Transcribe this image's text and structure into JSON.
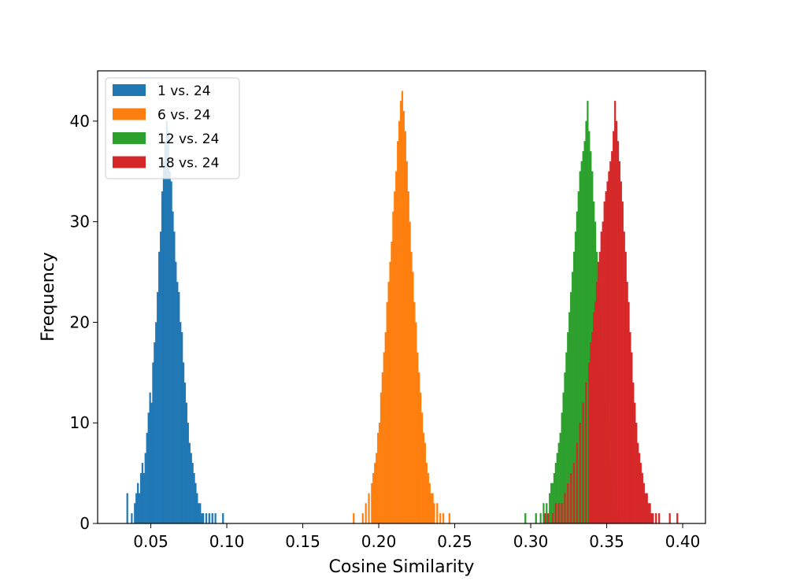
{
  "chart_data": {
    "type": "histogram",
    "title": "",
    "xlabel": "Cosine Similarity",
    "ylabel": "Frequency",
    "xlim": [
      0.015,
      0.415
    ],
    "ylim": [
      0,
      45
    ],
    "xticks": [
      "0.05",
      "0.10",
      "0.15",
      "0.20",
      "0.25",
      "0.30",
      "0.35",
      "0.40"
    ],
    "yticks": [
      "0",
      "10",
      "20",
      "30",
      "40"
    ],
    "grid": false,
    "legend_position": "top-left",
    "series": [
      {
        "name": "1 vs. 24",
        "color": "#1f77b4",
        "bins": [
          [
            0.034,
            3
          ],
          [
            0.037,
            1
          ],
          [
            0.039,
            2
          ],
          [
            0.04,
            3
          ],
          [
            0.041,
            4
          ],
          [
            0.042,
            3
          ],
          [
            0.043,
            5
          ],
          [
            0.044,
            6
          ],
          [
            0.045,
            5
          ],
          [
            0.046,
            7
          ],
          [
            0.047,
            9
          ],
          [
            0.048,
            11
          ],
          [
            0.049,
            13
          ],
          [
            0.05,
            12
          ],
          [
            0.051,
            16
          ],
          [
            0.052,
            18
          ],
          [
            0.053,
            20
          ],
          [
            0.054,
            23
          ],
          [
            0.055,
            27
          ],
          [
            0.056,
            29
          ],
          [
            0.057,
            33
          ],
          [
            0.058,
            36
          ],
          [
            0.059,
            38
          ],
          [
            0.06,
            40
          ],
          [
            0.061,
            39
          ],
          [
            0.062,
            35
          ],
          [
            0.063,
            34
          ],
          [
            0.064,
            31
          ],
          [
            0.065,
            29
          ],
          [
            0.066,
            26
          ],
          [
            0.067,
            24
          ],
          [
            0.068,
            23
          ],
          [
            0.069,
            20
          ],
          [
            0.07,
            19
          ],
          [
            0.071,
            16
          ],
          [
            0.072,
            14
          ],
          [
            0.073,
            12
          ],
          [
            0.074,
            10
          ],
          [
            0.075,
            8
          ],
          [
            0.076,
            7
          ],
          [
            0.077,
            6
          ],
          [
            0.078,
            5
          ],
          [
            0.079,
            4
          ],
          [
            0.08,
            3
          ],
          [
            0.081,
            2
          ],
          [
            0.082,
            2
          ],
          [
            0.083,
            1
          ],
          [
            0.084,
            1
          ],
          [
            0.086,
            1
          ],
          [
            0.088,
            1
          ],
          [
            0.09,
            1
          ],
          [
            0.092,
            1
          ],
          [
            0.097,
            1
          ]
        ]
      },
      {
        "name": "6 vs. 24",
        "color": "#ff7f0e",
        "bins": [
          [
            0.183,
            1
          ],
          [
            0.189,
            1
          ],
          [
            0.191,
            2
          ],
          [
            0.193,
            3
          ],
          [
            0.195,
            4
          ],
          [
            0.196,
            5
          ],
          [
            0.197,
            6
          ],
          [
            0.198,
            7
          ],
          [
            0.199,
            9
          ],
          [
            0.2,
            10
          ],
          [
            0.201,
            13
          ],
          [
            0.202,
            15
          ],
          [
            0.203,
            17
          ],
          [
            0.204,
            19
          ],
          [
            0.205,
            22
          ],
          [
            0.206,
            24
          ],
          [
            0.207,
            26
          ],
          [
            0.208,
            28
          ],
          [
            0.209,
            31
          ],
          [
            0.21,
            33
          ],
          [
            0.211,
            35
          ],
          [
            0.212,
            38
          ],
          [
            0.213,
            40
          ],
          [
            0.214,
            42
          ],
          [
            0.215,
            43
          ],
          [
            0.216,
            41
          ],
          [
            0.217,
            39
          ],
          [
            0.218,
            36
          ],
          [
            0.219,
            33
          ],
          [
            0.22,
            30
          ],
          [
            0.221,
            27
          ],
          [
            0.222,
            25
          ],
          [
            0.223,
            22
          ],
          [
            0.224,
            20
          ],
          [
            0.225,
            17
          ],
          [
            0.226,
            15
          ],
          [
            0.227,
            13
          ],
          [
            0.228,
            11
          ],
          [
            0.229,
            9
          ],
          [
            0.23,
            8
          ],
          [
            0.231,
            6
          ],
          [
            0.232,
            5
          ],
          [
            0.233,
            4
          ],
          [
            0.234,
            3
          ],
          [
            0.235,
            3
          ],
          [
            0.236,
            2
          ],
          [
            0.238,
            2
          ],
          [
            0.24,
            1
          ],
          [
            0.242,
            1
          ],
          [
            0.246,
            1
          ]
        ]
      },
      {
        "name": "12 vs. 24",
        "color": "#2ca02c",
        "bins": [
          [
            0.296,
            1
          ],
          [
            0.303,
            1
          ],
          [
            0.306,
            1
          ],
          [
            0.308,
            2
          ],
          [
            0.31,
            2
          ],
          [
            0.312,
            3
          ],
          [
            0.313,
            4
          ],
          [
            0.314,
            4
          ],
          [
            0.315,
            5
          ],
          [
            0.316,
            6
          ],
          [
            0.317,
            7
          ],
          [
            0.318,
            8
          ],
          [
            0.319,
            9
          ],
          [
            0.32,
            11
          ],
          [
            0.321,
            13
          ],
          [
            0.322,
            15
          ],
          [
            0.323,
            17
          ],
          [
            0.324,
            19
          ],
          [
            0.325,
            21
          ],
          [
            0.326,
            23
          ],
          [
            0.327,
            25
          ],
          [
            0.328,
            27
          ],
          [
            0.329,
            29
          ],
          [
            0.33,
            31
          ],
          [
            0.331,
            33
          ],
          [
            0.332,
            35
          ],
          [
            0.333,
            36
          ],
          [
            0.334,
            37
          ],
          [
            0.335,
            38
          ],
          [
            0.336,
            40
          ],
          [
            0.337,
            42
          ],
          [
            0.338,
            39
          ],
          [
            0.339,
            37
          ],
          [
            0.34,
            35
          ],
          [
            0.341,
            32
          ],
          [
            0.342,
            30
          ],
          [
            0.343,
            27
          ],
          [
            0.344,
            24
          ],
          [
            0.345,
            21
          ],
          [
            0.346,
            18
          ],
          [
            0.347,
            15
          ],
          [
            0.348,
            12
          ],
          [
            0.349,
            10
          ],
          [
            0.35,
            8
          ],
          [
            0.351,
            6
          ],
          [
            0.352,
            4
          ],
          [
            0.353,
            3
          ],
          [
            0.354,
            2
          ],
          [
            0.355,
            1
          ],
          [
            0.357,
            1
          ]
        ]
      },
      {
        "name": "18 vs. 24",
        "color": "#d62728",
        "bins": [
          [
            0.309,
            1
          ],
          [
            0.311,
            1
          ],
          [
            0.314,
            1
          ],
          [
            0.316,
            2
          ],
          [
            0.318,
            2
          ],
          [
            0.32,
            2
          ],
          [
            0.322,
            3
          ],
          [
            0.324,
            4
          ],
          [
            0.326,
            5
          ],
          [
            0.328,
            6
          ],
          [
            0.33,
            8
          ],
          [
            0.332,
            10
          ],
          [
            0.334,
            12
          ],
          [
            0.336,
            14
          ],
          [
            0.338,
            16
          ],
          [
            0.339,
            18
          ],
          [
            0.34,
            19
          ],
          [
            0.341,
            21
          ],
          [
            0.342,
            22
          ],
          [
            0.343,
            24
          ],
          [
            0.344,
            26
          ],
          [
            0.345,
            27
          ],
          [
            0.346,
            29
          ],
          [
            0.347,
            30
          ],
          [
            0.348,
            32
          ],
          [
            0.349,
            33
          ],
          [
            0.35,
            34
          ],
          [
            0.351,
            35
          ],
          [
            0.352,
            36
          ],
          [
            0.353,
            37
          ],
          [
            0.354,
            39
          ],
          [
            0.355,
            42
          ],
          [
            0.356,
            40
          ],
          [
            0.357,
            38
          ],
          [
            0.358,
            36
          ],
          [
            0.359,
            34
          ],
          [
            0.36,
            32
          ],
          [
            0.361,
            29
          ],
          [
            0.362,
            27
          ],
          [
            0.363,
            24
          ],
          [
            0.364,
            22
          ],
          [
            0.365,
            19
          ],
          [
            0.366,
            17
          ],
          [
            0.367,
            14
          ],
          [
            0.368,
            12
          ],
          [
            0.369,
            10
          ],
          [
            0.37,
            8
          ],
          [
            0.371,
            7
          ],
          [
            0.372,
            6
          ],
          [
            0.373,
            5
          ],
          [
            0.374,
            4
          ],
          [
            0.375,
            3
          ],
          [
            0.376,
            3
          ],
          [
            0.377,
            2
          ],
          [
            0.378,
            2
          ],
          [
            0.379,
            1
          ],
          [
            0.38,
            1
          ],
          [
            0.382,
            1
          ],
          [
            0.384,
            1
          ],
          [
            0.391,
            1
          ],
          [
            0.396,
            1
          ]
        ]
      }
    ]
  }
}
